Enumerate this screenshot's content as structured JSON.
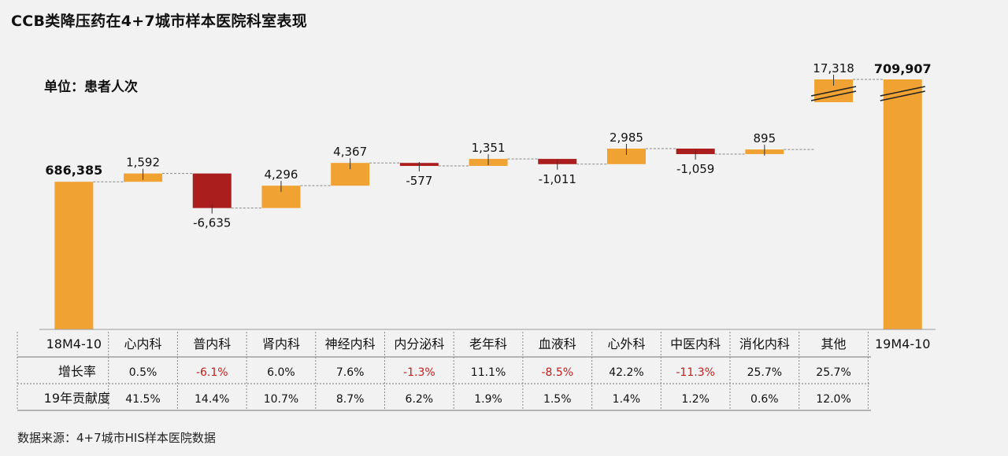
{
  "title": "CCB类降压药在4+7城市样本医院科室表现",
  "unit_label": "单位：患者人次",
  "source": "数据来源：4+7城市HIS样本医院数据",
  "colors": {
    "increase": "#f0a332",
    "decrease": "#ab1e1e",
    "total": "#f0a332"
  },
  "chart_data": {
    "type": "waterfall",
    "start": {
      "category": "18M4-10",
      "value": 686385,
      "label": "686,385"
    },
    "end": {
      "category": "19M4-10",
      "value": 709907,
      "label": "709,907"
    },
    "steps": [
      {
        "category": "心内科",
        "value": 1592,
        "label": "1,592"
      },
      {
        "category": "普内科",
        "value": -6635,
        "label": "-6,635"
      },
      {
        "category": "肾内科",
        "value": 4296,
        "label": "4,296"
      },
      {
        "category": "神经内科",
        "value": 4367,
        "label": "4,367"
      },
      {
        "category": "内分泌科",
        "value": -577,
        "label": "-577"
      },
      {
        "category": "老年科",
        "value": 1351,
        "label": "1,351"
      },
      {
        "category": "血液科",
        "value": -1011,
        "label": "-1,011"
      },
      {
        "category": "心外科",
        "value": 2985,
        "label": "2,985"
      },
      {
        "category": "中医内科",
        "value": -1059,
        "label": "-1,059"
      },
      {
        "category": "消化内科",
        "value": 895,
        "label": "895"
      },
      {
        "category": "其他",
        "value": 17318,
        "label": "17,318"
      }
    ],
    "axis_break": true
  },
  "table": {
    "rows": [
      {
        "header": "增长率",
        "values": [
          "0.5%",
          "-6.1%",
          "6.0%",
          "7.6%",
          "-1.3%",
          "11.1%",
          "-8.5%",
          "42.2%",
          "-11.3%",
          "25.7%",
          "25.7%"
        ]
      },
      {
        "header": "19年贡献度",
        "values": [
          "41.5%",
          "14.4%",
          "10.7%",
          "8.7%",
          "6.2%",
          "1.9%",
          "1.5%",
          "1.4%",
          "1.2%",
          "0.6%",
          "12.0%"
        ]
      }
    ]
  }
}
